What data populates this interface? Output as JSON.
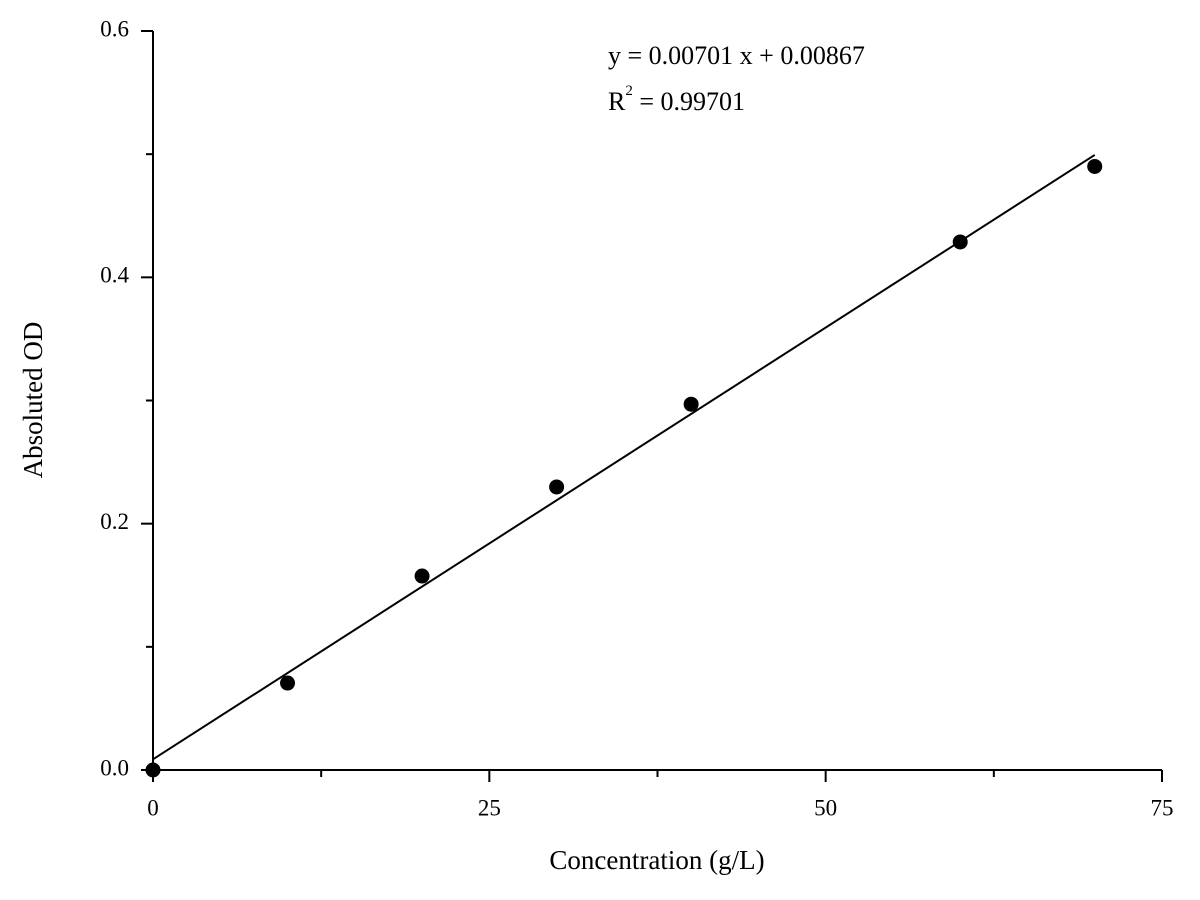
{
  "chart_data": {
    "type": "scatter",
    "x_label": "Concentration (g/L)",
    "y_label": "Absoluted OD",
    "x": [
      0,
      10,
      20,
      30,
      40,
      60,
      70
    ],
    "series": [
      {
        "color": "#000000",
        "values": [
          0,
          0.0706,
          0.1575,
          0.2298,
          0.297,
          0.4287,
          0.49
        ]
      }
    ],
    "fit": {
      "slope": 0.00701,
      "intercept": 0.00867,
      "equation": "y = 0.00701 x + 0.00867",
      "r2_symbol": "R",
      "r2_power": "2",
      "r2_text": " = 0.99701"
    },
    "xlim": [
      0,
      75
    ],
    "ylim": [
      0,
      0.6
    ],
    "xticks": [
      0,
      25,
      50,
      75
    ],
    "xminorticks": [
      12.5,
      37.5,
      62.5
    ],
    "yticks": [
      {
        "value": 0,
        "label": "0.0"
      },
      0.2,
      0.4,
      0.6
    ],
    "yminorticks": [
      0.1,
      0.3,
      0.5
    ],
    "grid": false
  }
}
